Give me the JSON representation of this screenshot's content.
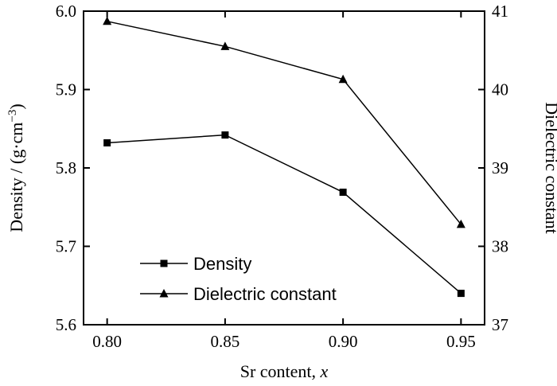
{
  "chart_data": {
    "type": "line",
    "x": [
      0.8,
      0.85,
      0.9,
      0.95
    ],
    "x_ticks": [
      "0.80",
      "0.85",
      "0.90",
      "0.95"
    ],
    "xlim": [
      0.79,
      0.96
    ],
    "xlabel": "Sr content, ",
    "xlabel_italic": "x",
    "ylabel_left": "Density / (g·cm",
    "ylabel_left_sup": "−3",
    "ylabel_left_close": ")",
    "ylabel_right": "Dielectric constant",
    "ylim_left": [
      5.6,
      6.0
    ],
    "ylim_right": [
      37,
      41
    ],
    "y_ticks_left": [
      "5.6",
      "5.7",
      "5.8",
      "5.9",
      "6.0"
    ],
    "y_ticks_right": [
      "37",
      "38",
      "39",
      "40",
      "41"
    ],
    "grid": false,
    "legend_position": "bottom-left",
    "series": [
      {
        "name": "Density",
        "axis": "left",
        "marker": "square",
        "values": [
          5.832,
          5.842,
          5.769,
          5.64
        ]
      },
      {
        "name": "Dielectric constant",
        "axis": "right",
        "marker": "triangle",
        "values": [
          40.87,
          40.55,
          40.13,
          38.28
        ]
      }
    ]
  }
}
